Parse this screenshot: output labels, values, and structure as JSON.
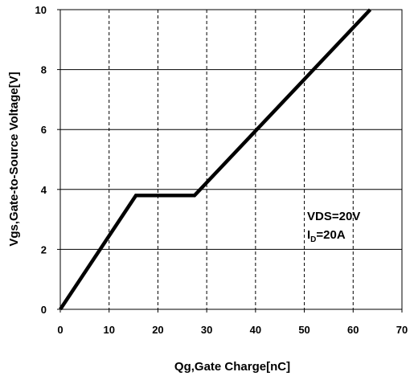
{
  "chart_data": {
    "type": "line",
    "title": "",
    "xlabel": "Qg,Gate Charge[nC]",
    "ylabel": "Vgs,Gate-to-Source Voltage[V]",
    "xlim": [
      0,
      70
    ],
    "ylim": [
      0,
      10
    ],
    "x_ticks": [
      0,
      10,
      20,
      30,
      40,
      50,
      60,
      70
    ],
    "y_ticks": [
      0,
      2,
      4,
      6,
      8,
      10
    ],
    "x_tick_labels": [
      "0",
      "10",
      "20",
      "30",
      "40",
      "50",
      "60",
      "70"
    ],
    "y_tick_labels": [
      "0",
      "2",
      "4",
      "6",
      "8",
      "10"
    ],
    "grid": true,
    "series": [
      {
        "x": [
          0,
          15.5,
          27.5,
          63.5
        ],
        "y": [
          0,
          3.8,
          3.8,
          10
        ],
        "color": "#000000"
      }
    ],
    "annotation": {
      "line1": "VDS=20V",
      "line2_prefix": "I",
      "line2_sub": "D",
      "line2_suffix": "=20A"
    }
  }
}
